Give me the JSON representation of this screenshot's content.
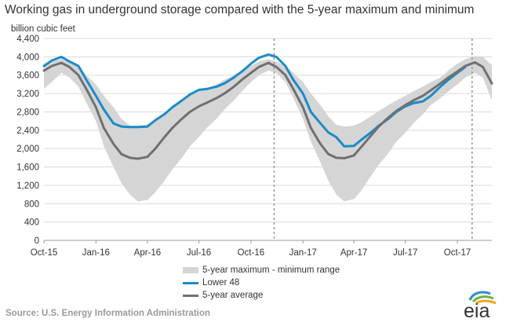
{
  "chart_data": {
    "type": "area",
    "title": "Working gas in underground storage compared with the 5-year maximum and minimum",
    "ylabel": "billion cubic feet",
    "xlabel": "",
    "ylim": [
      0,
      4400
    ],
    "yticks": [
      "0",
      "400",
      "800",
      "1,200",
      "1,600",
      "2,000",
      "2,400",
      "2,800",
      "3,200",
      "3,600",
      "4,000",
      "4,400"
    ],
    "x_range": [
      "2015-10-01",
      "2017-12-01"
    ],
    "xticks": [
      {
        "date": "2015-10-01",
        "label": "Oct-15"
      },
      {
        "date": "2016-01-01",
        "label": "Jan-16"
      },
      {
        "date": "2016-04-01",
        "label": "Apr-16"
      },
      {
        "date": "2016-07-01",
        "label": "Jul-16"
      },
      {
        "date": "2016-10-01",
        "label": "Oct-16"
      },
      {
        "date": "2017-01-01",
        "label": "Jan-17"
      },
      {
        "date": "2017-04-01",
        "label": "Apr-17"
      },
      {
        "date": "2017-07-01",
        "label": "Jul-17"
      },
      {
        "date": "2017-10-01",
        "label": "Oct-17"
      }
    ],
    "vertical_markers": [
      "2016-11-11",
      "2017-10-27"
    ],
    "grid": "horizontal",
    "legend_position": "bottom",
    "series": [
      {
        "name": "5-year maximum - minimum range",
        "kind": "band",
        "color": "#d5d5d5",
        "dates": [
          "2015-10-01",
          "2015-10-15",
          "2015-11-01",
          "2015-11-15",
          "2015-12-01",
          "2015-12-15",
          "2016-01-01",
          "2016-01-15",
          "2016-02-01",
          "2016-02-15",
          "2016-03-01",
          "2016-03-15",
          "2016-04-01",
          "2016-04-15",
          "2016-05-01",
          "2016-05-15",
          "2016-06-01",
          "2016-06-15",
          "2016-07-01",
          "2016-07-15",
          "2016-08-01",
          "2016-08-15",
          "2016-09-01",
          "2016-09-15",
          "2016-10-01",
          "2016-10-15",
          "2016-11-01",
          "2016-11-15",
          "2016-12-01",
          "2016-12-15",
          "2017-01-01",
          "2017-01-15",
          "2017-02-01",
          "2017-02-15",
          "2017-03-01",
          "2017-03-15",
          "2017-04-01",
          "2017-04-15",
          "2017-05-01",
          "2017-05-15",
          "2017-06-01",
          "2017-06-15",
          "2017-07-01",
          "2017-07-15",
          "2017-08-01",
          "2017-08-15",
          "2017-09-01",
          "2017-09-15",
          "2017-10-01",
          "2017-10-15",
          "2017-11-01",
          "2017-11-15",
          "2017-12-01"
        ],
        "high": [
          3850,
          3900,
          3950,
          3880,
          3800,
          3600,
          3400,
          3150,
          2900,
          2650,
          2500,
          2500,
          2520,
          2600,
          2750,
          2900,
          3050,
          3150,
          3250,
          3320,
          3400,
          3500,
          3600,
          3700,
          3800,
          3900,
          3950,
          3900,
          3800,
          3650,
          3450,
          3200,
          2950,
          2700,
          2520,
          2480,
          2500,
          2580,
          2700,
          2820,
          2950,
          3050,
          3150,
          3250,
          3350,
          3450,
          3550,
          3700,
          3850,
          3950,
          4020,
          4000,
          3820
        ],
        "low": [
          3300,
          3450,
          3650,
          3550,
          3350,
          3000,
          2600,
          2050,
          1600,
          1250,
          1000,
          850,
          880,
          1050,
          1300,
          1550,
          1800,
          2050,
          2250,
          2450,
          2650,
          2850,
          3050,
          3250,
          3450,
          3600,
          3700,
          3650,
          3450,
          3100,
          2650,
          2150,
          1700,
          1300,
          1000,
          850,
          900,
          1100,
          1400,
          1650,
          1900,
          2150,
          2350,
          2550,
          2750,
          2950,
          3100,
          3250,
          3400,
          3550,
          3650,
          3550,
          3050
        ]
      },
      {
        "name": "Lower 48",
        "kind": "line",
        "color": "#1b8bc8",
        "dates": [
          "2015-10-01",
          "2015-10-15",
          "2015-11-01",
          "2015-11-15",
          "2015-12-01",
          "2015-12-15",
          "2016-01-01",
          "2016-01-15",
          "2016-02-01",
          "2016-02-15",
          "2016-03-01",
          "2016-03-15",
          "2016-04-01",
          "2016-04-15",
          "2016-05-01",
          "2016-05-15",
          "2016-06-01",
          "2016-06-15",
          "2016-07-01",
          "2016-07-15",
          "2016-08-01",
          "2016-08-15",
          "2016-09-01",
          "2016-09-15",
          "2016-10-01",
          "2016-10-15",
          "2016-11-01",
          "2016-11-15",
          "2016-12-01",
          "2016-12-15",
          "2017-01-01",
          "2017-01-15",
          "2017-02-01",
          "2017-02-15",
          "2017-03-01",
          "2017-03-15",
          "2017-04-01",
          "2017-04-15",
          "2017-05-01",
          "2017-05-15",
          "2017-06-01",
          "2017-06-15",
          "2017-07-01",
          "2017-07-15",
          "2017-08-01",
          "2017-08-15",
          "2017-09-01",
          "2017-09-15",
          "2017-10-01",
          "2017-10-15"
        ],
        "values": [
          3800,
          3920,
          4000,
          3900,
          3800,
          3500,
          3150,
          2850,
          2550,
          2480,
          2470,
          2470,
          2480,
          2620,
          2750,
          2900,
          3050,
          3180,
          3280,
          3300,
          3350,
          3420,
          3550,
          3680,
          3850,
          3980,
          4050,
          4000,
          3800,
          3500,
          3200,
          2800,
          2550,
          2350,
          2250,
          2050,
          2060,
          2200,
          2350,
          2500,
          2650,
          2800,
          2920,
          2990,
          3030,
          3150,
          3350,
          3500,
          3650,
          3780
        ]
      },
      {
        "name": "5-year average",
        "kind": "line",
        "color": "#707070",
        "dates": [
          "2015-10-01",
          "2015-10-15",
          "2015-11-01",
          "2015-11-15",
          "2015-12-01",
          "2015-12-15",
          "2016-01-01",
          "2016-01-15",
          "2016-02-01",
          "2016-02-15",
          "2016-03-01",
          "2016-03-15",
          "2016-04-01",
          "2016-04-15",
          "2016-05-01",
          "2016-05-15",
          "2016-06-01",
          "2016-06-15",
          "2016-07-01",
          "2016-07-15",
          "2016-08-01",
          "2016-08-15",
          "2016-09-01",
          "2016-09-15",
          "2016-10-01",
          "2016-10-15",
          "2016-11-01",
          "2016-11-15",
          "2016-12-01",
          "2016-12-15",
          "2017-01-01",
          "2017-01-15",
          "2017-02-01",
          "2017-02-15",
          "2017-03-01",
          "2017-03-15",
          "2017-04-01",
          "2017-04-15",
          "2017-05-01",
          "2017-05-15",
          "2017-06-01",
          "2017-06-15",
          "2017-07-01",
          "2017-07-15",
          "2017-08-01",
          "2017-08-15",
          "2017-09-01",
          "2017-09-15",
          "2017-10-01",
          "2017-10-15",
          "2017-11-01",
          "2017-11-15",
          "2017-12-01"
        ],
        "values": [
          3700,
          3800,
          3870,
          3780,
          3600,
          3300,
          2900,
          2450,
          2100,
          1880,
          1800,
          1780,
          1820,
          2000,
          2250,
          2450,
          2650,
          2800,
          2920,
          3000,
          3100,
          3200,
          3350,
          3500,
          3650,
          3780,
          3870,
          3780,
          3600,
          3300,
          2900,
          2450,
          2100,
          1880,
          1800,
          1790,
          1850,
          2050,
          2280,
          2480,
          2680,
          2820,
          2950,
          3050,
          3150,
          3270,
          3420,
          3550,
          3680,
          3800,
          3880,
          3780,
          3420
        ]
      }
    ]
  },
  "source": "Source:  U.S. Energy Information Administration",
  "logo_text": "eia"
}
